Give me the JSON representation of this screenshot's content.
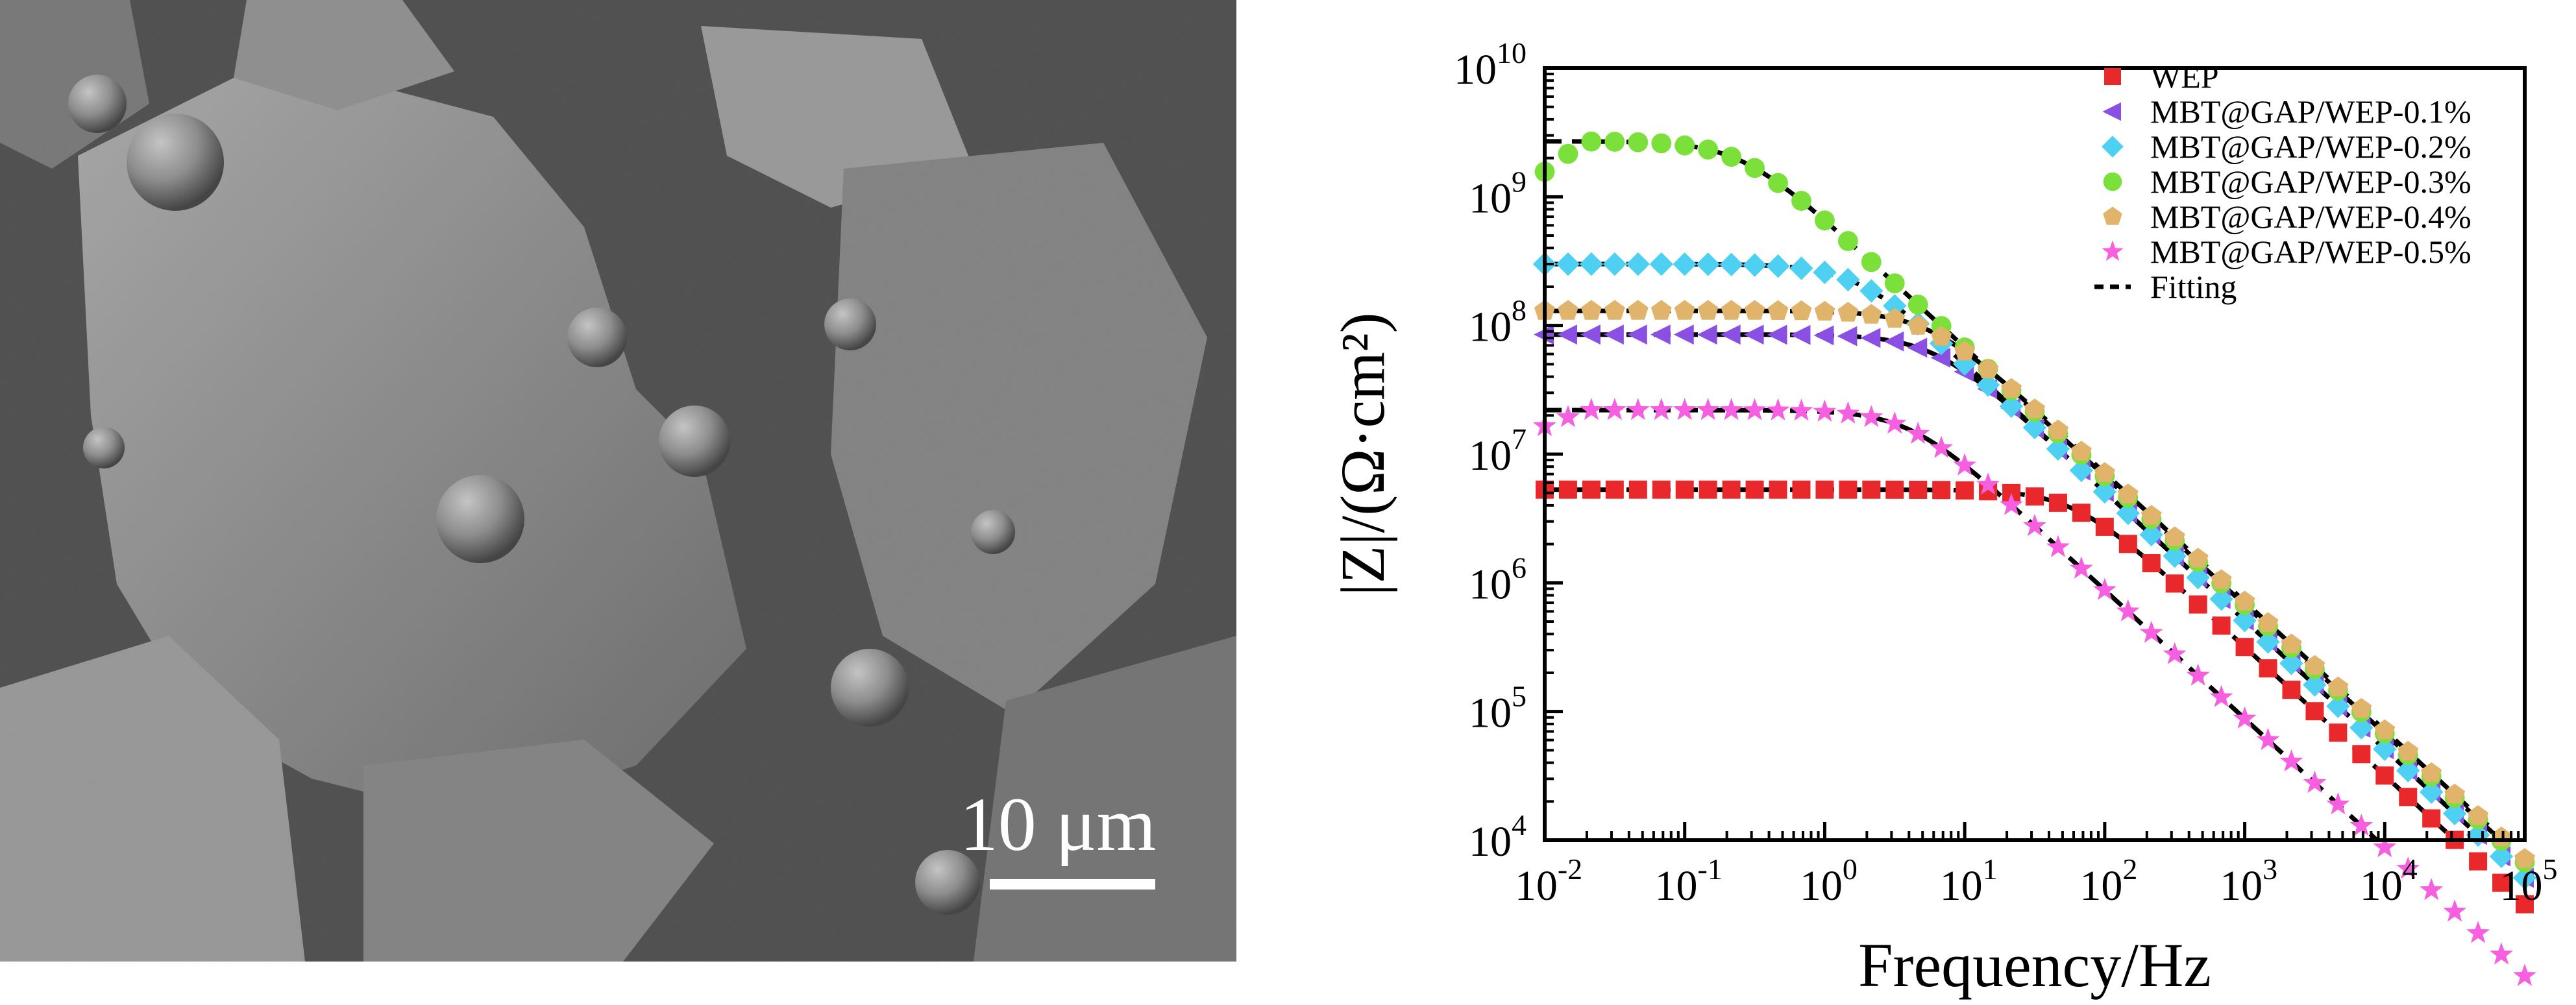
{
  "sem_image": {
    "scale_bar_label": "10 μm"
  },
  "chart_data": {
    "type": "scatter",
    "xlabel": "Frequency/Hz",
    "ylabel": "|Z|/(Ω·cm²)",
    "x_scale": "log",
    "y_scale": "log",
    "xlim": [
      0.01,
      100000
    ],
    "ylim": [
      10000,
      10000000000
    ],
    "x_ticks": [
      {
        "base": "10",
        "exp": "-2",
        "value": 0.01
      },
      {
        "base": "10",
        "exp": "-1",
        "value": 0.1
      },
      {
        "base": "10",
        "exp": "0",
        "value": 1
      },
      {
        "base": "10",
        "exp": "1",
        "value": 10
      },
      {
        "base": "10",
        "exp": "2",
        "value": 100
      },
      {
        "base": "10",
        "exp": "3",
        "value": 1000
      },
      {
        "base": "10",
        "exp": "4",
        "value": 10000
      },
      {
        "base": "10",
        "exp": "5",
        "value": 100000
      }
    ],
    "y_ticks": [
      {
        "base": "10",
        "exp": "4",
        "value": 10000
      },
      {
        "base": "10",
        "exp": "5",
        "value": 100000
      },
      {
        "base": "10",
        "exp": "6",
        "value": 1000000
      },
      {
        "base": "10",
        "exp": "7",
        "value": 10000000
      },
      {
        "base": "10",
        "exp": "8",
        "value": 100000000
      },
      {
        "base": "10",
        "exp": "9",
        "value": 1000000000
      },
      {
        "base": "10",
        "exp": "10",
        "value": 10000000000
      }
    ],
    "legend_position": "top-right",
    "grid": false,
    "series": [
      {
        "name": "WEP",
        "marker": "square",
        "color": "#e8282b",
        "z0": 5300000,
        "fc": 60
      },
      {
        "name": "MBT@GAP/WEP-0.1%",
        "marker": "triangle-left",
        "color": "#8a4fe3",
        "z0": 85000000,
        "fc": 6
      },
      {
        "name": "MBT@GAP/WEP-0.2%",
        "marker": "diamond",
        "color": "#4dd0f2",
        "z0": 300000000,
        "fc": 1.7
      },
      {
        "name": "MBT@GAP/WEP-0.3%",
        "marker": "circle",
        "color": "#7be03a",
        "z0": 2700000000,
        "fc": 0.25
      },
      {
        "name": "MBT@GAP/WEP-0.4%",
        "marker": "pentagon",
        "color": "#e0b46a",
        "z0": 130000000,
        "fc": 5.5
      },
      {
        "name": "MBT@GAP/WEP-0.5%",
        "marker": "star",
        "color": "#f55fe0",
        "z0": 22000000,
        "fc": 4
      }
    ],
    "fit_line": {
      "name": "Fitting",
      "style": "dashed",
      "color": "#000000"
    }
  }
}
